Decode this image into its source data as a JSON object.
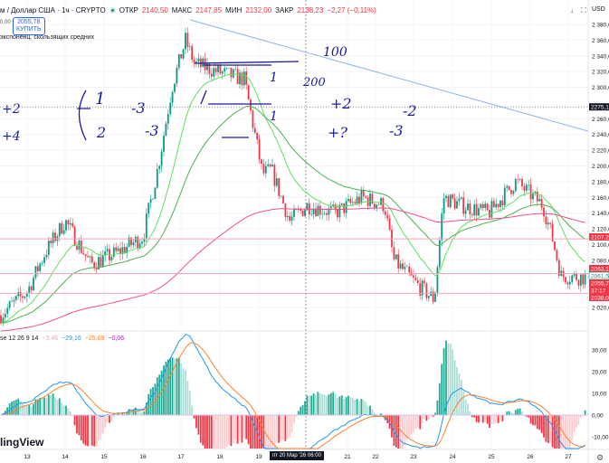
{
  "header": {
    "symbol": "м / Доллар США · 1ч · CRYPTO",
    "open_label": "ОТКР",
    "open": "2140,50",
    "high_label": "МАКС",
    "high": "2147,85",
    "low_label": "МИН",
    "low": "2132,00",
    "close_label": "ЗАКР",
    "close": "2138,23",
    "change": "−2,27 (−0,11%)"
  },
  "trade": {
    "sell_partial": "0,00",
    "buy_price": "2055,78",
    "buy_label": "КУПИТЬ"
  },
  "indicator_label": "экспоненц. скользящих средних",
  "macd": {
    "label": "se 12 26 9 14",
    "hist": "−3,46",
    "macd": "−29,16",
    "signal": "−25,69",
    "extra": "−0,06",
    "axis": [
      "30,00",
      "20,00",
      "10,00",
      "0,00",
      "-10,00"
    ]
  },
  "price_axis": {
    "currency": "USD",
    "ticks": [
      "2 380,0",
      "2 360,0",
      "2 340,0",
      "2 320,0",
      "2 300,0",
      "2 260,0",
      "2 240,0",
      "2 220,0",
      "2 200,0",
      "2 180,0",
      "2 160,0",
      "2 140,0",
      "2 120,0",
      "2 100,0",
      "2 080,0",
      "2 020,0"
    ],
    "tick_values": [
      2380,
      2360,
      2340,
      2320,
      2300,
      2260,
      2240,
      2220,
      2200,
      2180,
      2160,
      2140,
      2120,
      2100,
      2080,
      2020
    ],
    "labels": [
      {
        "text": "2275,1",
        "value": 2275.1,
        "color": "#131722"
      },
      {
        "text": "2107,2",
        "value": 2107.2,
        "color": "#f23645"
      },
      {
        "text": "2063,1",
        "value": 2063.1,
        "color": "#f23645"
      },
      {
        "text": "2061,5",
        "value": 2061.5,
        "color": "#ffffff"
      },
      {
        "text": "2055,7",
        "value": 2055.7,
        "color": "#f23645"
      },
      {
        "text": "37:17",
        "value": 2047,
        "color": "#f23645"
      },
      {
        "text": "2038,0",
        "value": 2038,
        "color": "#f23645"
      }
    ]
  },
  "time_axis": {
    "days": [
      "13",
      "14",
      "15",
      "16",
      "17",
      "18",
      "19",
      "21",
      "22",
      "23",
      "24",
      "25",
      "26",
      "27"
    ],
    "crosshair": "пт 20 Мар '26  06:00"
  },
  "drawings": {
    "notes": [
      "100",
      "200",
      "+2",
      "+4",
      "1",
      "2",
      "-3",
      "-3",
      "1",
      "1",
      "+2",
      "-2",
      "+?",
      "-3"
    ],
    "hlines": [
      2107.2,
      2063.1,
      2038.0
    ],
    "dotted": 2275.1
  },
  "price_path": [
    [
      0,
      2010
    ],
    [
      30,
      2040
    ],
    [
      50,
      2090
    ],
    [
      72,
      2130
    ],
    [
      100,
      2075
    ],
    [
      130,
      2090
    ],
    [
      158,
      2110
    ],
    [
      175,
      2200
    ],
    [
      190,
      2300
    ],
    [
      205,
      2360
    ],
    [
      215,
      2330
    ],
    [
      240,
      2320
    ],
    [
      270,
      2310
    ],
    [
      280,
      2250
    ],
    [
      290,
      2190
    ],
    [
      300,
      2195
    ],
    [
      320,
      2130
    ],
    [
      340,
      2150
    ],
    [
      370,
      2140
    ],
    [
      400,
      2160
    ],
    [
      425,
      2150
    ],
    [
      435,
      2080
    ],
    [
      460,
      2050
    ],
    [
      480,
      2030
    ],
    [
      490,
      2160
    ],
    [
      510,
      2150
    ],
    [
      540,
      2140
    ],
    [
      570,
      2180
    ],
    [
      600,
      2150
    ],
    [
      610,
      2110
    ],
    [
      620,
      2060
    ],
    [
      650,
      2058
    ]
  ],
  "colors": {
    "up": "#089981",
    "down": "#f23645",
    "ema_fast": "#5ee05e",
    "ema_mid": "#4caf50",
    "ema_slow": "#f0508a",
    "trend": "#90b4f0",
    "macd": "#2196f3",
    "signal": "#ff7f2a"
  },
  "icons": [
    "download-icon",
    "fullscreen-icon",
    "settings-icon"
  ],
  "logo": "lingView"
}
